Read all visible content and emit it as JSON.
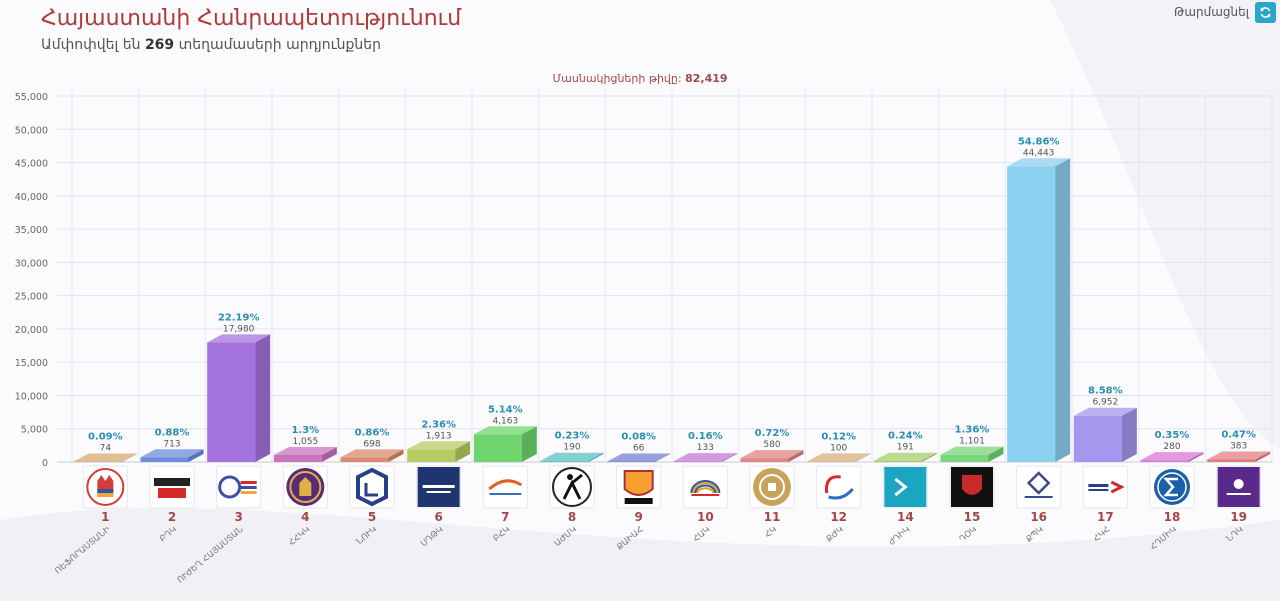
{
  "header": {
    "title": "Հայաստանի Հանրապետությունում",
    "subtitle_prefix": "Ամփոփվել են",
    "subtitle_count": "269",
    "subtitle_suffix": "տեղամասերի արդյունքներ",
    "refresh_label": "Թարմացնել"
  },
  "participants": {
    "label": "Մասնակիցների թիվը:",
    "value": "82,419"
  },
  "colors": {
    "title": "#b03a3a",
    "number": "#a04848",
    "percent": "#2a8fb0",
    "accent": "#2aa6c6"
  },
  "chart_data": {
    "type": "bar",
    "yticks": [
      "55,000",
      "50,000",
      "45,000",
      "40,000",
      "35,000",
      "30,000",
      "25,000",
      "20,000",
      "15,000",
      "10,000",
      "5,000",
      "0"
    ],
    "ylim": [
      0,
      55000
    ],
    "grid": true,
    "bars": [
      {
        "num": "1",
        "name": "ՈԵՖՈՐԱՍՏԱՆԻ",
        "pct": "0.09%",
        "label": "74",
        "value": 74,
        "color": "#d4aa72",
        "logo": "hand-logo"
      },
      {
        "num": "2",
        "name": "ԲԴԿ",
        "pct": "0.88%",
        "label": "713",
        "value": 713,
        "color": "#6b8cd9",
        "logo": "bolorin-logo"
      },
      {
        "num": "3",
        "name": "ՈՒԺԵՂ ՀԱՅԱՍՏԱՆ",
        "pct": "22.19%",
        "label": "17,980",
        "value": 17980,
        "color": "#a473de",
        "logo": "strong-armenia-logo"
      },
      {
        "num": "4",
        "name": "ՀՀԿԿ",
        "pct": "1.3%",
        "label": "1,055",
        "value": 1055,
        "color": "#c875c0",
        "logo": "lion-logo"
      },
      {
        "num": "5",
        "name": "ՆՈՒԿ",
        "pct": "0.86%",
        "label": "698",
        "value": 698,
        "color": "#d88b6e",
        "logo": "cube-logo"
      },
      {
        "num": "6",
        "name": "ՍԴԹԿ",
        "pct": "2.36%",
        "label": "1,913",
        "value": 1913,
        "color": "#b6cc62",
        "logo": "sdhk-logo"
      },
      {
        "num": "7",
        "name": "ԲՀԿ",
        "pct": "5.14%",
        "label": "4,163",
        "value": 4163,
        "color": "#6fd66f",
        "logo": "bird-logo"
      },
      {
        "num": "8",
        "name": "ԱԺՄԿ",
        "pct": "0.23%",
        "label": "190",
        "value": 190,
        "color": "#5cc2c2",
        "logo": "archer-logo"
      },
      {
        "num": "9",
        "name": "ՔԱԻԱՀ",
        "pct": "0.08%",
        "label": "66",
        "value": 66,
        "color": "#7a7fd6",
        "logo": "emblem-logo"
      },
      {
        "num": "10",
        "name": "ՀԱԿ",
        "pct": "0.16%",
        "label": "133",
        "value": 133,
        "color": "#c77ad6",
        "logo": "hak-logo"
      },
      {
        "num": "11",
        "name": "ՀԿ",
        "pct": "0.72%",
        "label": "580",
        "value": 580,
        "color": "#e08484",
        "logo": "ornament-logo"
      },
      {
        "num": "12",
        "name": "ՔԺԿ",
        "pct": "0.12%",
        "label": "100",
        "value": 100,
        "color": "#d4b07a",
        "logo": "swirl-logo"
      },
      {
        "num": "14",
        "name": "ժԴԻԿ",
        "pct": "0.24%",
        "label": "191",
        "value": 191,
        "color": "#a6cc6a",
        "logo": "arrow-logo"
      },
      {
        "num": "15",
        "name": "ԴՕԿ",
        "pct": "1.36%",
        "label": "1,101",
        "value": 1101,
        "color": "#78d67a",
        "logo": "shield-logo"
      },
      {
        "num": "16",
        "name": "ՔՊԿ",
        "pct": "54.86%",
        "label": "44,443",
        "value": 44443,
        "color": "#8cd0ef",
        "logo": "qpk-logo"
      },
      {
        "num": "17",
        "name": "ՀԿՀ",
        "pct": "8.58%",
        "label": "6,952",
        "value": 6952,
        "color": "#a796ee",
        "logo": "hayastan-logo"
      },
      {
        "num": "18",
        "name": "ՀԴՄԻԿ",
        "pct": "0.35%",
        "label": "280",
        "value": 280,
        "color": "#d87ad8",
        "logo": "sigma-logo"
      },
      {
        "num": "19",
        "name": "ՆԴԿ",
        "pct": "0.47%",
        "label": "383",
        "value": 383,
        "color": "#e08080",
        "logo": "republic-logo"
      }
    ]
  }
}
